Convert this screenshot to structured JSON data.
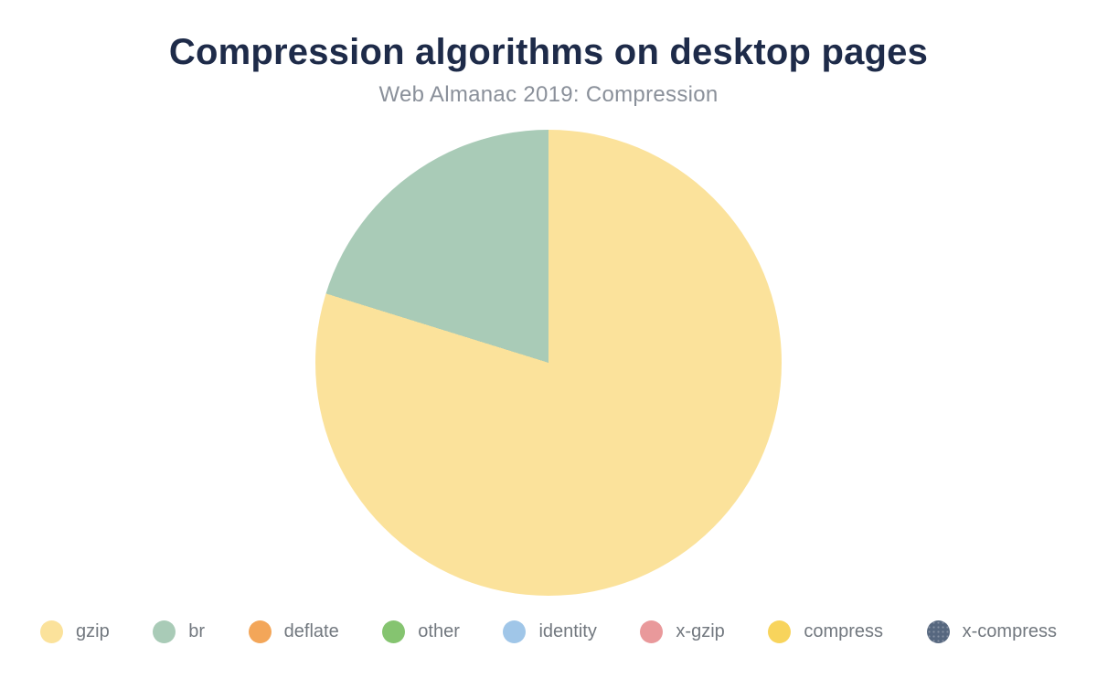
{
  "header": {
    "title": "Compression algorithms on desktop pages",
    "subtitle": "Web Almanac 2019: Compression"
  },
  "colors": {
    "background": "#ffffff",
    "title_text": "#1e2b49",
    "subtitle_text": "#8a909a",
    "legend_text": "#72787f"
  },
  "chart_data": {
    "type": "pie",
    "title": "Compression algorithms on desktop pages",
    "subtitle": "Web Almanac 2019: Compression",
    "value_unit": "percent",
    "start_angle_deg": 0,
    "direction": "clockwise",
    "legend_position": "bottom",
    "slices": [
      {
        "label": "gzip",
        "value": 79.8,
        "color": "#fbe29b"
      },
      {
        "label": "br",
        "value": 20.2,
        "color": "#a9cbb7"
      },
      {
        "label": "deflate",
        "value": 0,
        "color": "#f3a659"
      },
      {
        "label": "other",
        "value": 0,
        "color": "#85c470"
      },
      {
        "label": "identity",
        "value": 0,
        "color": "#a0c6e8"
      },
      {
        "label": "x-gzip",
        "value": 0,
        "color": "#e9999b"
      },
      {
        "label": "compress",
        "value": 0,
        "color": "#f8d45c"
      },
      {
        "label": "x-compress",
        "value": 0,
        "color": "#56677f",
        "pattern": "dots"
      }
    ]
  }
}
